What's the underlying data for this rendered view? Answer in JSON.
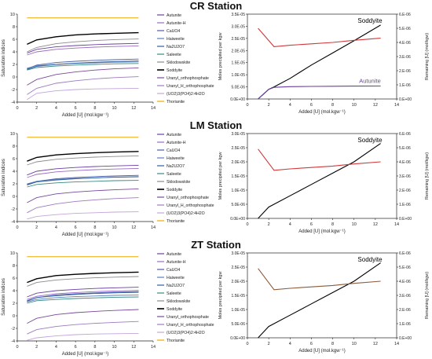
{
  "colors": {
    "Autunite": "#6b3fa0",
    "Autunite-H": "#9a6bc4",
    "CaUO4": "#4a5fa8",
    "Haiweeite": "#5b7fbf",
    "Na2U2O7": "#2d5d9f",
    "Saleeite": "#3a8a7f",
    "Sklodowskite": "#8a8a8a",
    "Soddyite": "#000000",
    "Uranyl_orthophosphate": "#7a4a9a",
    "Uranyl_H_orthophosphate": "#9d7bbf",
    "(UO2)3(PO4)2:4H2O": "#c3a5d9",
    "Thorianite": "#f0a800",
    "remaining": "#d0383a"
  },
  "stations": [
    {
      "title": "CR Station"
    },
    {
      "title": "LM Station"
    },
    {
      "title": "ZT Station"
    }
  ],
  "chart_data": [
    {
      "type": "line",
      "xlabel": "Added [U] (mol.kgw⁻¹)",
      "ylabel": "Saturation indices",
      "xlim": [
        0,
        14
      ],
      "ylim": [
        -4,
        10
      ],
      "xticks": [
        "0",
        "2",
        "4",
        "6",
        "8",
        "10",
        "12",
        "14"
      ],
      "yticks": [
        "-4",
        "-2",
        "0",
        "2",
        "4",
        "6",
        "8",
        "10"
      ],
      "x": [
        1,
        2,
        4,
        6,
        8,
        10,
        12.5
      ],
      "series": [
        {
          "name": "Autunite",
          "values": [
            3.8,
            4.4,
            4.8,
            5.0,
            5.15,
            5.25,
            5.35
          ]
        },
        {
          "name": "Autunite-H",
          "values": [
            3.5,
            4.0,
            4.4,
            4.6,
            4.75,
            4.85,
            4.95
          ]
        },
        {
          "name": "CaUO4",
          "values": [
            1.3,
            1.9,
            2.3,
            2.5,
            2.65,
            2.75,
            2.85
          ]
        },
        {
          "name": "Haiweeite",
          "values": [
            1.4,
            1.8,
            2.0,
            2.15,
            2.25,
            2.35,
            2.4
          ]
        },
        {
          "name": "Na2U2O7",
          "values": [
            1.2,
            1.7,
            2.0,
            2.2,
            2.35,
            2.45,
            2.55
          ]
        },
        {
          "name": "Saleeite",
          "values": [
            1.1,
            1.5,
            1.75,
            1.9,
            2.0,
            2.1,
            2.15
          ]
        },
        {
          "name": "Sklodowskite",
          "values": [
            4.0,
            4.7,
            5.3,
            5.6,
            5.8,
            5.95,
            6.05
          ]
        },
        {
          "name": "Soddyite",
          "values": [
            5.2,
            5.9,
            6.4,
            6.7,
            6.85,
            6.95,
            7.05
          ]
        },
        {
          "name": "Uranyl_orthophosphate",
          "values": [
            -1.3,
            -0.4,
            0.4,
            0.8,
            1.1,
            1.3,
            1.45
          ]
        },
        {
          "name": "Uranyl_H_orthophosphate",
          "values": [
            -2.8,
            -1.8,
            -1.0,
            -0.6,
            -0.3,
            -0.1,
            0.05
          ]
        },
        {
          "name": "(UO2)3(PO4)2:4H2O",
          "values": [
            -3.6,
            -2.6,
            -2.2,
            -2.0,
            -1.9,
            -1.85,
            -1.8
          ]
        },
        {
          "name": "Thorianite",
          "values": [
            9.4,
            9.4,
            9.4,
            9.4,
            9.4,
            9.4,
            9.4
          ]
        }
      ]
    },
    {
      "type": "line",
      "xlabel": "Added [U] (mol.kgw⁻¹)",
      "ylabel": "Moles precipited per kgw",
      "ylabel2": "Remaining [U] (mol/kgw)",
      "xlim": [
        0,
        14
      ],
      "ylim": [
        0,
        3.5e-05
      ],
      "ylim2": [
        0,
        6e-06
      ],
      "xticks": [
        "0",
        "2",
        "4",
        "6",
        "8",
        "10",
        "12",
        "14"
      ],
      "yticks": [
        "0.0E+00",
        "5.0E-06",
        "1.0E-05",
        "1.5E-05",
        "2.0E-05",
        "2.5E-05",
        "3.0E-05",
        "3.5E-05"
      ],
      "yticks2": [
        "0.E+00",
        "1.E-06",
        "2.E-06",
        "3.E-06",
        "4.E-06",
        "5.E-06",
        "6.E-06"
      ],
      "annotations": [
        {
          "text": "Soddyite",
          "color": "#000000"
        },
        {
          "text": "Autunite",
          "color": "#6b3fa0"
        }
      ],
      "series": [
        {
          "name": "Soddyite",
          "axis": "left",
          "x": [
            1,
            1.5,
            2,
            2.5,
            4,
            6,
            8,
            10,
            12.5
          ],
          "values": [
            0,
            2e-06,
            4e-06,
            5e-06,
            8.5e-06,
            1.4e-05,
            1.9e-05,
            2.4e-05,
            3.05e-05
          ]
        },
        {
          "name": "Autunite",
          "axis": "left",
          "x": [
            1,
            1.5,
            2,
            2.5,
            4,
            6,
            8,
            10,
            12.5
          ],
          "values": [
            0,
            2e-06,
            4e-06,
            4.8e-06,
            5.1e-06,
            5.2e-06,
            5.25e-06,
            5.3e-06,
            5.35e-06
          ]
        },
        {
          "name": "Remaining [U]",
          "axis": "right",
          "x": [
            1,
            2.5,
            4,
            6,
            8,
            10,
            12.5
          ],
          "values": [
            5e-06,
            3.7e-06,
            3.8e-06,
            3.9e-06,
            4e-06,
            4.15e-06,
            4.3e-06
          ]
        }
      ]
    },
    {
      "type": "line",
      "xlabel": "Added [U] (mol.kgw⁻¹)",
      "ylabel": "Saturation indices",
      "xlim": [
        0,
        14
      ],
      "ylim": [
        -4,
        10
      ],
      "xticks": [
        "0",
        "2",
        "4",
        "6",
        "8",
        "10",
        "12",
        "14"
      ],
      "yticks": [
        "-4",
        "-2",
        "0",
        "2",
        "4",
        "6",
        "8",
        "10"
      ],
      "x": [
        1,
        2,
        4,
        6,
        8,
        10,
        12.5
      ],
      "series": [
        {
          "name": "Autunite",
          "values": [
            3.4,
            4.0,
            4.4,
            4.6,
            4.75,
            4.85,
            4.95
          ]
        },
        {
          "name": "Autunite-H",
          "values": [
            3.0,
            3.5,
            3.9,
            4.1,
            4.25,
            4.35,
            4.45
          ]
        },
        {
          "name": "CaUO4",
          "values": [
            1.9,
            2.4,
            2.8,
            3.0,
            3.15,
            3.25,
            3.35
          ]
        },
        {
          "name": "Haiweeite",
          "values": [
            2.0,
            2.4,
            2.7,
            2.85,
            2.95,
            3.05,
            3.1
          ]
        },
        {
          "name": "Na2U2O7",
          "values": [
            1.8,
            2.3,
            2.6,
            2.8,
            2.95,
            3.05,
            3.15
          ]
        },
        {
          "name": "Saleeite",
          "values": [
            1.5,
            1.9,
            2.15,
            2.3,
            2.4,
            2.5,
            2.55
          ]
        },
        {
          "name": "Sklodowskite",
          "values": [
            5.0,
            5.5,
            5.9,
            6.1,
            6.25,
            6.35,
            6.45
          ]
        },
        {
          "name": "Soddyite",
          "values": [
            5.6,
            6.2,
            6.6,
            6.8,
            6.95,
            7.05,
            7.15
          ]
        },
        {
          "name": "Uranyl_orthophosphate",
          "values": [
            -1.0,
            -0.2,
            0.4,
            0.7,
            0.9,
            1.05,
            1.2
          ]
        },
        {
          "name": "Uranyl_H_orthophosphate",
          "values": [
            -2.6,
            -1.8,
            -1.2,
            -0.8,
            -0.55,
            -0.35,
            -0.2
          ]
        },
        {
          "name": "(UO2)3(PO4)2:4H2O",
          "values": [
            -3.6,
            -3.2,
            -2.9,
            -2.7,
            -2.6,
            -2.5,
            -2.45
          ]
        },
        {
          "name": "Thorianite",
          "values": [
            9.4,
            9.4,
            9.4,
            9.4,
            9.4,
            9.4,
            9.4
          ]
        }
      ]
    },
    {
      "type": "line",
      "xlabel": "Added [U] (mol.kgw⁻¹)",
      "ylabel": "Moles precipited per kgw",
      "ylabel2": "Remaining [U] (mol/kgw)",
      "xlim": [
        0,
        14
      ],
      "ylim": [
        0,
        3e-05
      ],
      "ylim2": [
        0,
        6e-06
      ],
      "xticks": [
        "0",
        "2",
        "4",
        "6",
        "8",
        "10",
        "12",
        "14"
      ],
      "yticks": [
        "0.0E+00",
        "5.0E-06",
        "1.0E-05",
        "1.5E-05",
        "2.0E-05",
        "2.5E-05",
        "3.0E-05"
      ],
      "yticks2": [
        "0.E+00",
        "1.E-06",
        "2.E-06",
        "3.E-06",
        "4.E-06",
        "5.E-06",
        "6.E-06"
      ],
      "annotations": [
        {
          "text": "Soddyite",
          "color": "#000000"
        }
      ],
      "series": [
        {
          "name": "Soddyite",
          "axis": "left",
          "x": [
            1,
            1.5,
            2,
            2.5,
            4,
            6,
            8,
            10,
            12.5
          ],
          "values": [
            0,
            2e-06,
            4e-06,
            5e-06,
            8e-06,
            1.2e-05,
            1.6e-05,
            2e-05,
            2.65e-05
          ]
        },
        {
          "name": "Remaining [U]",
          "axis": "right",
          "x": [
            1,
            2.5,
            4,
            6,
            8,
            10,
            12.5
          ],
          "values": [
            4.9e-06,
            3.4e-06,
            3.5e-06,
            3.6e-06,
            3.7e-06,
            3.85e-06,
            4e-06
          ]
        }
      ]
    },
    {
      "type": "line",
      "xlabel": "Added [U] (mol.kgw⁻¹)",
      "ylabel": "Saturation indices",
      "xlim": [
        0,
        14
      ],
      "ylim": [
        -4,
        10
      ],
      "xticks": [
        "0",
        "2",
        "4",
        "6",
        "8",
        "10",
        "12",
        "14"
      ],
      "yticks": [
        "-4",
        "-2",
        "0",
        "2",
        "4",
        "6",
        "8",
        "10"
      ],
      "x": [
        1,
        2,
        4,
        6,
        8,
        10,
        12.5
      ],
      "series": [
        {
          "name": "Autunite",
          "values": [
            3.0,
            3.6,
            4.0,
            4.2,
            4.35,
            4.45,
            4.55
          ]
        },
        {
          "name": "Autunite-H",
          "values": [
            2.6,
            3.1,
            3.5,
            3.7,
            3.85,
            3.95,
            4.05
          ]
        },
        {
          "name": "CaUO4",
          "values": [
            2.3,
            2.9,
            3.3,
            3.5,
            3.65,
            3.75,
            3.85
          ]
        },
        {
          "name": "Haiweeite",
          "values": [
            2.2,
            2.6,
            2.9,
            3.05,
            3.15,
            3.25,
            3.3
          ]
        },
        {
          "name": "Na2U2O7",
          "values": [
            2.4,
            2.9,
            3.2,
            3.4,
            3.55,
            3.65,
            3.75
          ]
        },
        {
          "name": "Saleeite",
          "values": [
            2.0,
            2.4,
            2.6,
            2.75,
            2.85,
            2.95,
            3.0
          ]
        },
        {
          "name": "Sklodowskite",
          "values": [
            4.7,
            5.3,
            5.7,
            5.9,
            6.05,
            6.15,
            6.25
          ]
        },
        {
          "name": "Soddyite",
          "values": [
            5.3,
            5.9,
            6.4,
            6.6,
            6.75,
            6.85,
            6.95
          ]
        },
        {
          "name": "Uranyl_orthophosphate",
          "values": [
            -1.2,
            -0.4,
            0.2,
            0.5,
            0.7,
            0.85,
            1.0
          ]
        },
        {
          "name": "Uranyl_H_orthophosphate",
          "values": [
            -2.9,
            -2.2,
            -1.7,
            -1.4,
            -1.2,
            -1.05,
            -0.9
          ]
        },
        {
          "name": "(UO2)3(PO4)2:4H2O",
          "values": [
            -3.9,
            -3.5,
            -3.2,
            -3.0,
            -2.9,
            -2.85,
            -2.8
          ]
        },
        {
          "name": "Thorianite",
          "values": [
            9.4,
            9.4,
            9.4,
            9.4,
            9.4,
            9.4,
            9.4
          ]
        }
      ]
    },
    {
      "type": "line",
      "xlabel": "Added [U] (mol.kgw⁻¹)",
      "ylabel": "Moles precipited per kgw",
      "ylabel2": "Remaining [U] (mol/kgw)",
      "xlim": [
        0,
        14
      ],
      "ylim": [
        0,
        3e-05
      ],
      "ylim2": [
        0,
        6e-06
      ],
      "xticks": [
        "0",
        "2",
        "4",
        "6",
        "8",
        "10",
        "12",
        "14"
      ],
      "yticks": [
        "0.0E+00",
        "5.0E-06",
        "1.0E-05",
        "1.5E-05",
        "2.0E-05",
        "2.5E-05",
        "3.0E-05"
      ],
      "yticks2": [
        "0.E+00",
        "1.E-06",
        "2.E-06",
        "3.E-06",
        "4.E-06",
        "5.E-06",
        "6.E-06"
      ],
      "annotations": [
        {
          "text": "Soddyite",
          "color": "#000000"
        }
      ],
      "series": [
        {
          "name": "Soddyite",
          "axis": "left",
          "x": [
            1,
            1.5,
            2,
            2.5,
            4,
            6,
            8,
            10,
            12.5
          ],
          "values": [
            0,
            2e-06,
            4e-06,
            5e-06,
            8e-06,
            1.2e-05,
            1.6e-05,
            2e-05,
            2.65e-05
          ]
        },
        {
          "name": "Remaining [U]",
          "axis": "right",
          "x": [
            1,
            2.5,
            4,
            6,
            8,
            10,
            12.5
          ],
          "values": [
            4.9e-06,
            3.4e-06,
            3.5e-06,
            3.6e-06,
            3.7e-06,
            3.85e-06,
            4e-06
          ]
        }
      ],
      "remaining_color": "#8a5a3a"
    }
  ]
}
